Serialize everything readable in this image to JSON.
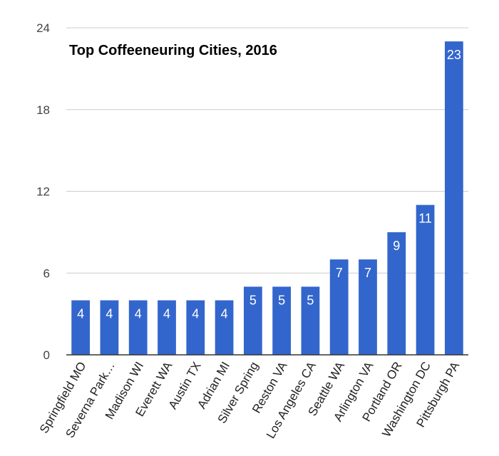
{
  "chart_data": {
    "type": "bar",
    "title": "Top Coffeeneuring Cities, 2016",
    "xlabel": "",
    "ylabel": "",
    "ylim": [
      0,
      24
    ],
    "yticks": [
      0,
      6,
      12,
      18,
      24
    ],
    "grid": true,
    "legend": "none",
    "bar_color": "#3366cc",
    "categories": [
      "Springfield MO",
      "Severna Park…",
      "Madison WI",
      "Everett WA",
      "Austin TX",
      "Adrian MI",
      "Silver Spring",
      "Reston VA",
      "Los Angeles CA",
      "Seattle WA",
      "Arlington VA",
      "Portland OR",
      "Washington DC",
      "Pittsburgh PA"
    ],
    "values": [
      4,
      4,
      4,
      4,
      4,
      4,
      5,
      5,
      5,
      7,
      7,
      9,
      11,
      23
    ]
  }
}
